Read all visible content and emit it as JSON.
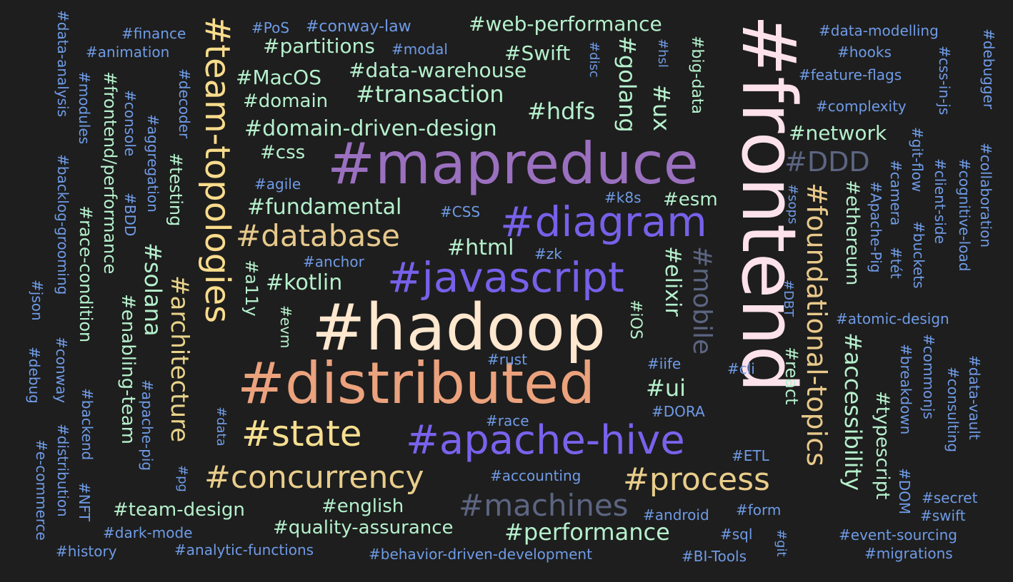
{
  "tags": [
    {
      "text": "#frontend",
      "color": "#fde2ec"
    },
    {
      "text": "#hadoop",
      "color": "#ffe8cf"
    },
    {
      "text": "#mapreduce",
      "color": "#9a70bf"
    },
    {
      "text": "#distributed",
      "color": "#eba27d"
    },
    {
      "text": "#team-topologies",
      "color": "#f9dc8c"
    },
    {
      "text": "#javascript",
      "color": "#7661e9"
    },
    {
      "text": "#diagram",
      "color": "#7661e9"
    },
    {
      "text": "#apache-hive",
      "color": "#7a62ed"
    },
    {
      "text": "#foundational-topics",
      "color": "#e9c98a"
    },
    {
      "text": "#database",
      "color": "#e7c98c"
    },
    {
      "text": "#state",
      "color": "#f7df90"
    },
    {
      "text": "#concurrency",
      "color": "#e9cd8b"
    },
    {
      "text": "#process",
      "color": "#e9cd8b"
    },
    {
      "text": "#machines",
      "color": "#5c6581"
    },
    {
      "text": "#DDD",
      "color": "#5c6581"
    },
    {
      "text": "#mobile",
      "color": "#5c6581"
    },
    {
      "text": "#architecture",
      "color": "#e9d38a"
    },
    {
      "text": "#solana",
      "color": "#b5f0cc"
    },
    {
      "text": "#accessibility",
      "color": "#b5f0cc"
    },
    {
      "text": "#golang",
      "color": "#b5f0cc"
    },
    {
      "text": "#ux",
      "color": "#b5f0cc"
    },
    {
      "text": "#elixir",
      "color": "#b5f0cc"
    },
    {
      "text": "#performance",
      "color": "#b5f0cc"
    },
    {
      "text": "#html",
      "color": "#b5f0cc"
    },
    {
      "text": "#kotlin",
      "color": "#b5f0cc"
    },
    {
      "text": "#fundamental",
      "color": "#b5f0cc"
    },
    {
      "text": "#domain-driven-design",
      "color": "#b5f0cc"
    },
    {
      "text": "#transaction",
      "color": "#b5f0cc"
    },
    {
      "text": "#hdfs",
      "color": "#b5f0cc"
    },
    {
      "text": "#web-performance",
      "color": "#b5f0cc"
    },
    {
      "text": "#data-warehouse",
      "color": "#b5f0cc"
    },
    {
      "text": "#partitions",
      "color": "#b5f0cc"
    },
    {
      "text": "#Swift",
      "color": "#b5f0cc"
    },
    {
      "text": "#MacOS",
      "color": "#b5f0cc"
    },
    {
      "text": "#domain",
      "color": "#b5f0cc"
    },
    {
      "text": "#css",
      "color": "#b5f0cc"
    },
    {
      "text": "#ui",
      "color": "#b5f0cc"
    },
    {
      "text": "#esm",
      "color": "#b5f0cc"
    },
    {
      "text": "#network",
      "color": "#b5f0cc"
    },
    {
      "text": "#typescript",
      "color": "#b5f0cc"
    },
    {
      "text": "#ethereum",
      "color": "#b5f0cc"
    },
    {
      "text": "#react",
      "color": "#b5f0cc"
    },
    {
      "text": "#team-design",
      "color": "#b5f0cc"
    },
    {
      "text": "#english",
      "color": "#b5f0cc"
    },
    {
      "text": "#quality-assurance",
      "color": "#b5f0cc"
    },
    {
      "text": "#enabling-team",
      "color": "#b5f0cc"
    },
    {
      "text": "#race-condition",
      "color": "#b5f0cc"
    },
    {
      "text": "#frontend/performance",
      "color": "#b5f0cc"
    },
    {
      "text": "#testing",
      "color": "#b5f0cc"
    },
    {
      "text": "#a11y",
      "color": "#b5f0cc"
    },
    {
      "text": "#iOS",
      "color": "#b5f0cc"
    },
    {
      "text": "#big-data",
      "color": "#b5f0cc"
    },
    {
      "text": "#evm",
      "color": "#b5f0cc"
    },
    {
      "text": "#finance",
      "color": "#6f9be6"
    },
    {
      "text": "#animation",
      "color": "#6f9be6"
    },
    {
      "text": "#PoS",
      "color": "#6f9be6"
    },
    {
      "text": "#conway-law",
      "color": "#6f9be6"
    },
    {
      "text": "#modal",
      "color": "#6f9be6"
    },
    {
      "text": "#data-modelling",
      "color": "#6f9be6"
    },
    {
      "text": "#hooks",
      "color": "#6f9be6"
    },
    {
      "text": "#feature-flags",
      "color": "#6f9be6"
    },
    {
      "text": "#complexity",
      "color": "#6f9be6"
    },
    {
      "text": "#agile",
      "color": "#6f9be6"
    },
    {
      "text": "#CSS",
      "color": "#6f9be6"
    },
    {
      "text": "#k8s",
      "color": "#6f9be6"
    },
    {
      "text": "#anchor",
      "color": "#6f9be6"
    },
    {
      "text": "#zk",
      "color": "#6f9be6"
    },
    {
      "text": "#rust",
      "color": "#6f9be6"
    },
    {
      "text": "#iife",
      "color": "#6f9be6"
    },
    {
      "text": "#cli",
      "color": "#6f9be6"
    },
    {
      "text": "#race",
      "color": "#6f9be6"
    },
    {
      "text": "#DORA",
      "color": "#6f9be6"
    },
    {
      "text": "#ETL",
      "color": "#6f9be6"
    },
    {
      "text": "#accounting",
      "color": "#6f9be6"
    },
    {
      "text": "#atomic-design",
      "color": "#6f9be6"
    },
    {
      "text": "#android",
      "color": "#6f9be6"
    },
    {
      "text": "#form",
      "color": "#6f9be6"
    },
    {
      "text": "#sql",
      "color": "#6f9be6"
    },
    {
      "text": "#secret",
      "color": "#6f9be6"
    },
    {
      "text": "#swift",
      "color": "#6f9be6"
    },
    {
      "text": "#event-sourcing",
      "color": "#6f9be6"
    },
    {
      "text": "#migrations",
      "color": "#6f9be6"
    },
    {
      "text": "#dark-mode",
      "color": "#6f9be6"
    },
    {
      "text": "#history",
      "color": "#6f9be6"
    },
    {
      "text": "#analytic-functions",
      "color": "#6f9be6"
    },
    {
      "text": "#behavior-driven-development",
      "color": "#6f9be6"
    },
    {
      "text": "#BI-Tools",
      "color": "#6f9be6"
    },
    {
      "text": "#data-analysis",
      "color": "#6f9be6"
    },
    {
      "text": "#modules",
      "color": "#6f9be6"
    },
    {
      "text": "#console",
      "color": "#6f9be6"
    },
    {
      "text": "#aggregation",
      "color": "#6f9be6"
    },
    {
      "text": "#decoder",
      "color": "#6f9be6"
    },
    {
      "text": "#BDD",
      "color": "#6f9be6"
    },
    {
      "text": "#backlog-grooming",
      "color": "#6f9be6"
    },
    {
      "text": "#json",
      "color": "#6f9be6"
    },
    {
      "text": "#debug",
      "color": "#6f9be6"
    },
    {
      "text": "#conway",
      "color": "#6f9be6"
    },
    {
      "text": "#distribution",
      "color": "#6f9be6"
    },
    {
      "text": "#e-commerce",
      "color": "#6f9be6"
    },
    {
      "text": "#backend",
      "color": "#6f9be6"
    },
    {
      "text": "#NFT",
      "color": "#6f9be6"
    },
    {
      "text": "#apache-pig",
      "color": "#6f9be6"
    },
    {
      "text": "#data",
      "color": "#6f9be6"
    },
    {
      "text": "#pg",
      "color": "#6f9be6"
    },
    {
      "text": "#disc",
      "color": "#6f9be6"
    },
    {
      "text": "#hsl",
      "color": "#6f9be6"
    },
    {
      "text": "#sops",
      "color": "#6f9be6"
    },
    {
      "text": "#DBT",
      "color": "#6f9be6"
    },
    {
      "text": "#git",
      "color": "#6f9be6"
    },
    {
      "text": "#Apache-Pig",
      "color": "#6f9be6"
    },
    {
      "text": "#camera",
      "color": "#6f9be6"
    },
    {
      "text": "#tét",
      "color": "#6f9be6"
    },
    {
      "text": "#git-flow",
      "color": "#6f9be6"
    },
    {
      "text": "#client-side",
      "color": "#6f9be6"
    },
    {
      "text": "#buckets",
      "color": "#6f9be6"
    },
    {
      "text": "#css-in-js",
      "color": "#6f9be6"
    },
    {
      "text": "#cognitive-load",
      "color": "#6f9be6"
    },
    {
      "text": "#debugger",
      "color": "#6f9be6"
    },
    {
      "text": "#collaboration",
      "color": "#6f9be6"
    },
    {
      "text": "#breakdown",
      "color": "#6f9be6"
    },
    {
      "text": "#commonjs",
      "color": "#6f9be6"
    },
    {
      "text": "#consulting",
      "color": "#6f9be6"
    },
    {
      "text": "#data-vault",
      "color": "#6f9be6"
    },
    {
      "text": "#DOM",
      "color": "#6f9be6"
    }
  ]
}
